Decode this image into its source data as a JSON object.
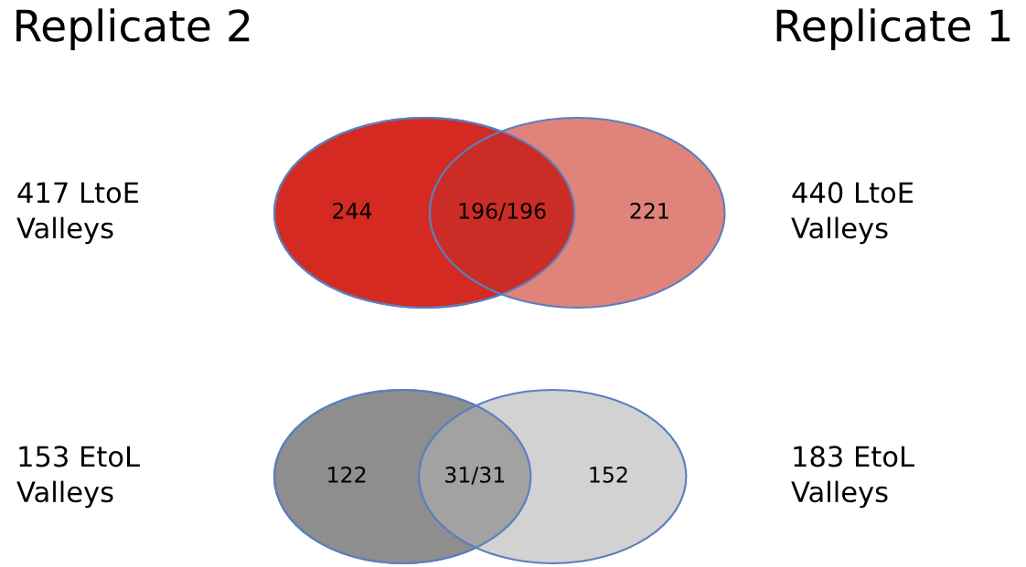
{
  "chart_data": [
    {
      "type": "other",
      "categories": [
        null,
        null,
        null
      ],
      "colors": [
        "#d42a22",
        "#cc2c26",
        "#e0837a"
      ],
      "values": [
        244,
        196,
        221
      ],
      "value_labels": [
        "244",
        "196/196",
        "221"
      ],
      "annotations": [
        "Replicate 2",
        "Replicate 1",
        "417 LtoE\nValleys",
        "440 LtoE\nValleys"
      ]
    },
    {
      "type": "other",
      "categories": [
        null,
        null,
        null
      ],
      "colors": [
        "#8e8e8e",
        "#a2a2a2",
        "#d2d2d2"
      ],
      "values": [
        122,
        31,
        152
      ],
      "value_labels": [
        "122",
        "31/31",
        "152"
      ],
      "annotations": [
        "153 EtoL\nValleys",
        "183 EtoL\nValleys"
      ]
    }
  ]
}
